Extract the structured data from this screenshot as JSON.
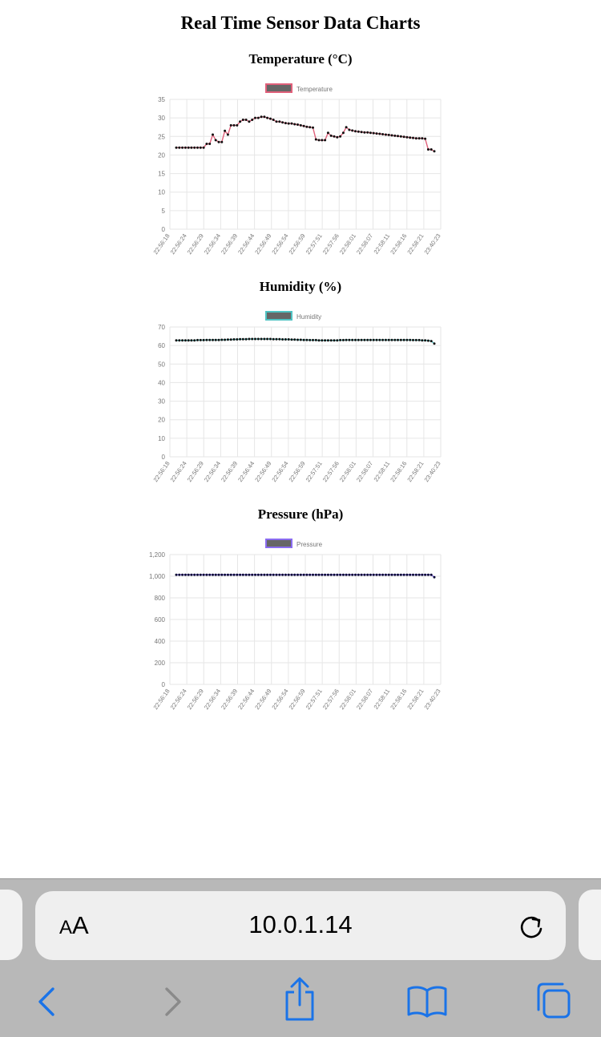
{
  "page": {
    "title": "Real Time Sensor Data Charts"
  },
  "chart_data": [
    {
      "type": "line",
      "title": "Temperature (°C)",
      "legend": "Temperature",
      "legend_position": "top",
      "color": "#e0607a",
      "point_color": "#111111",
      "legend_fill": "#666666",
      "ylim": [
        0,
        35
      ],
      "yticks": [
        0,
        5,
        10,
        15,
        20,
        25,
        30,
        35
      ],
      "ytick_labels": [
        "0",
        "5",
        "10",
        "15",
        "20",
        "25",
        "30",
        "35"
      ],
      "grid": true,
      "xtick_labels": [
        "22:56:18",
        "22:56:24",
        "22:56:29",
        "22:56:34",
        "22:56:39",
        "22:56:44",
        "22:56:49",
        "22:56:54",
        "22:56:59",
        "22:57:51",
        "22:57:56",
        "22:58:01",
        "22:58:07",
        "22:58:11",
        "22:58:16",
        "22:58:21",
        "23:40:23"
      ],
      "values": [
        22,
        22,
        22,
        22,
        22,
        22,
        22,
        22,
        22,
        22,
        23,
        23,
        25.5,
        24,
        23.5,
        23.5,
        26.5,
        25.5,
        28,
        28,
        28,
        29,
        29.5,
        29.5,
        29,
        29.5,
        30,
        30,
        30.3,
        30.3,
        30,
        29.8,
        29.5,
        29,
        29,
        28.8,
        28.6,
        28.5,
        28.5,
        28.3,
        28.2,
        28,
        27.8,
        27.6,
        27.5,
        27.4,
        24.2,
        24,
        24,
        24,
        26,
        25.2,
        25,
        24.8,
        25,
        26,
        27.5,
        26.8,
        26.6,
        26.4,
        26.3,
        26.2,
        26.1,
        26.1,
        26,
        25.9,
        25.8,
        25.7,
        25.6,
        25.5,
        25.4,
        25.3,
        25.2,
        25.1,
        25,
        24.9,
        24.8,
        24.7,
        24.6,
        24.5,
        24.5,
        24.5,
        24.4,
        21.5,
        21.5,
        21
      ]
    },
    {
      "type": "line",
      "title": "Humidity (%)",
      "legend": "Humidity",
      "legend_position": "top",
      "color": "#4fc3c3",
      "point_color": "#111111",
      "legend_fill": "#666666",
      "ylim": [
        0,
        70
      ],
      "yticks": [
        0,
        10,
        20,
        30,
        40,
        50,
        60,
        70
      ],
      "ytick_labels": [
        "0",
        "10",
        "20",
        "30",
        "40",
        "50",
        "60",
        "70"
      ],
      "grid": true,
      "xtick_labels": [
        "22:56:18",
        "22:56:24",
        "22:56:29",
        "22:56:34",
        "22:56:39",
        "22:56:44",
        "22:56:49",
        "22:56:54",
        "22:56:59",
        "22:57:51",
        "22:57:56",
        "22:58:01",
        "22:58:07",
        "22:58:11",
        "22:58:16",
        "22:58:21",
        "23:40:23"
      ],
      "values": [
        62.8,
        62.8,
        62.8,
        62.8,
        62.8,
        62.8,
        62.8,
        62.9,
        62.9,
        62.9,
        63,
        63,
        63,
        63,
        63,
        63.1,
        63.1,
        63.2,
        63.2,
        63.3,
        63.3,
        63.4,
        63.4,
        63.4,
        63.5,
        63.5,
        63.5,
        63.5,
        63.5,
        63.5,
        63.5,
        63.5,
        63.4,
        63.4,
        63.4,
        63.3,
        63.3,
        63.3,
        63.2,
        63.2,
        63.1,
        63.1,
        63,
        63,
        62.9,
        62.9,
        62.9,
        62.8,
        62.8,
        62.8,
        62.8,
        62.8,
        62.8,
        62.8,
        62.9,
        62.9,
        63,
        63,
        63,
        63,
        63,
        63,
        63,
        63,
        63,
        63,
        63,
        63,
        63,
        63,
        63,
        63,
        63,
        63,
        63,
        63,
        63,
        63,
        62.9,
        62.9,
        62.9,
        62.8,
        62.8,
        62.6,
        62.4,
        61
      ]
    },
    {
      "type": "line",
      "title": "Pressure (hPa)",
      "legend": "Pressure",
      "legend_position": "top",
      "color": "#8a6cf0",
      "point_color": "#0a0a33",
      "legend_fill": "#666666",
      "ylim": [
        0,
        1200
      ],
      "yticks": [
        0,
        200,
        400,
        600,
        800,
        1000,
        1200
      ],
      "ytick_labels": [
        "0",
        "200",
        "400",
        "600",
        "800",
        "1,000",
        "1,200"
      ],
      "grid": true,
      "xtick_labels": [
        "22:56:18",
        "22:56:24",
        "22:56:29",
        "22:56:34",
        "22:56:39",
        "22:56:44",
        "22:56:49",
        "22:56:54",
        "22:56:59",
        "22:57:51",
        "22:57:56",
        "22:58:01",
        "22:58:07",
        "22:58:11",
        "22:58:16",
        "22:58:21",
        "23:40:23"
      ],
      "values": [
        1013,
        1013,
        1013,
        1013,
        1013,
        1013,
        1013,
        1013,
        1013,
        1013,
        1013,
        1013,
        1013,
        1013,
        1013,
        1013,
        1013,
        1013,
        1013,
        1013,
        1013,
        1013,
        1013,
        1013,
        1013,
        1013,
        1013,
        1013,
        1013,
        1013,
        1013,
        1013,
        1013,
        1013,
        1013,
        1013,
        1013,
        1013,
        1013,
        1013,
        1013,
        1013,
        1013,
        1013,
        1013,
        1013,
        1013,
        1013,
        1013,
        1013,
        1013,
        1013,
        1013,
        1013,
        1013,
        1013,
        1013,
        1013,
        1013,
        1013,
        1013,
        1013,
        1013,
        1013,
        1013,
        1013,
        1013,
        1013,
        1013,
        1013,
        1013,
        1013,
        1013,
        1013,
        1013,
        1013,
        1013,
        1013,
        1013,
        1013,
        1013,
        1013,
        1013,
        1013,
        1013,
        990
      ]
    }
  ],
  "browser": {
    "url": "10.0.1.14",
    "aa_small": "A",
    "aa_big": "A",
    "icons": {
      "reload": "reload-icon",
      "back": "back-chevron-icon",
      "forward": "forward-chevron-icon",
      "share": "share-icon",
      "bookmarks": "book-icon",
      "tabs": "tabs-icon"
    },
    "colors": {
      "accent": "#1a73e8",
      "disabled": "#8a8a8a",
      "bar": "#b8b8b8"
    }
  }
}
